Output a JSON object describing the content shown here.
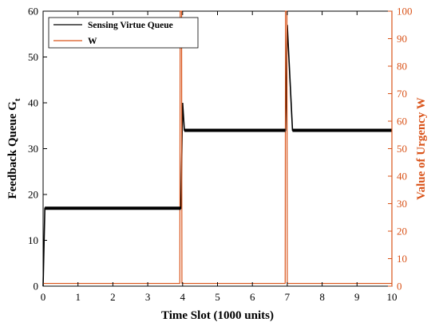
{
  "chart_data": {
    "type": "line",
    "x": {
      "label": "Time Slot (1000 units)",
      "range": [
        0,
        10
      ],
      "ticks": [
        0,
        1,
        2,
        3,
        4,
        5,
        6,
        7,
        8,
        9,
        10
      ]
    },
    "y_left": {
      "label_main": "Feedback Queue G",
      "label_sub": "t",
      "range": [
        0,
        60
      ],
      "ticks": [
        0,
        10,
        20,
        30,
        40,
        50,
        60
      ]
    },
    "y_right": {
      "label": "Value of Urgency W",
      "range": [
        0,
        100
      ],
      "ticks": [
        0,
        10,
        20,
        30,
        40,
        50,
        60,
        70,
        80,
        90,
        100
      ]
    },
    "series": [
      {
        "name": "Sensing Virtue Queue",
        "axis": "left",
        "color": "#000000",
        "points": [
          [
            0,
            0
          ],
          [
            0.05,
            17
          ],
          [
            3.95,
            17
          ],
          [
            4.0,
            40
          ],
          [
            4.05,
            34
          ],
          [
            6.95,
            34
          ],
          [
            7.0,
            57
          ],
          [
            7.15,
            34
          ],
          [
            10,
            34
          ]
        ]
      },
      {
        "name": "W",
        "axis": "right",
        "color": "#d95319",
        "points": [
          [
            0,
            1
          ],
          [
            3.92,
            1
          ],
          [
            3.93,
            100
          ],
          [
            3.97,
            100
          ],
          [
            3.98,
            1
          ],
          [
            6.94,
            1
          ],
          [
            6.95,
            100
          ],
          [
            6.99,
            100
          ],
          [
            7.0,
            1
          ],
          [
            10,
            1
          ]
        ]
      }
    ],
    "legend": {
      "position": "top-left"
    },
    "grid": false,
    "right_axis_color": "#d95319"
  }
}
